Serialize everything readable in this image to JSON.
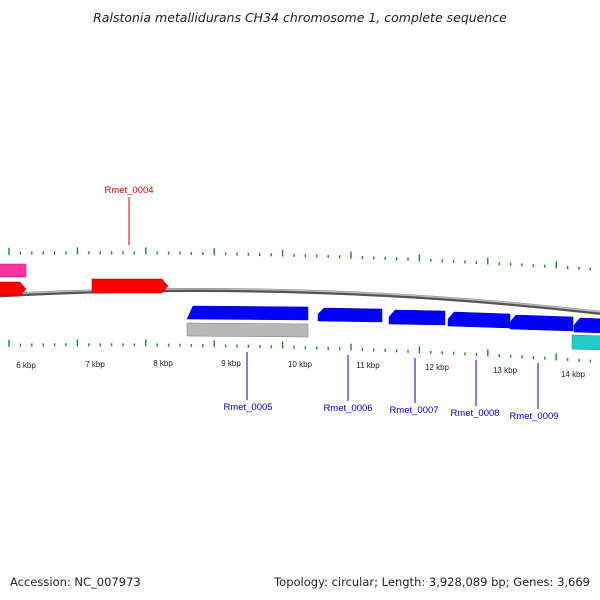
{
  "title": "Ralstonia metallidurans CH34 chromosome 1, complete sequence",
  "footer": {
    "accession": "Accession: NC_007973",
    "summary": "Topology: circular; Length: 3,928,089 bp; Genes: 3,669"
  },
  "colors": {
    "forward_gene": "#ff0000",
    "reverse_gene": "#0000ff",
    "forward_label": "#cc0000",
    "reverse_label": "#0000cc",
    "pink_gene": "#ff3399",
    "gray_gene": "#b8b8b8",
    "cyan_gene": "#22cccc",
    "tick": "#228B22",
    "backbone": "#888888"
  },
  "scale_labels": [
    "6 kbp",
    "7 kbp",
    "8 kbp",
    "9 kbp",
    "10 kbp",
    "11 kbp",
    "12 kbp",
    "13 kbp",
    "14 kbp"
  ],
  "gene_labels": {
    "forward": [
      "Rmet_0004"
    ],
    "reverse": [
      "Rmet_0005",
      "Rmet_0006",
      "Rmet_0007",
      "Rmet_0008",
      "Rmet_0009"
    ]
  }
}
